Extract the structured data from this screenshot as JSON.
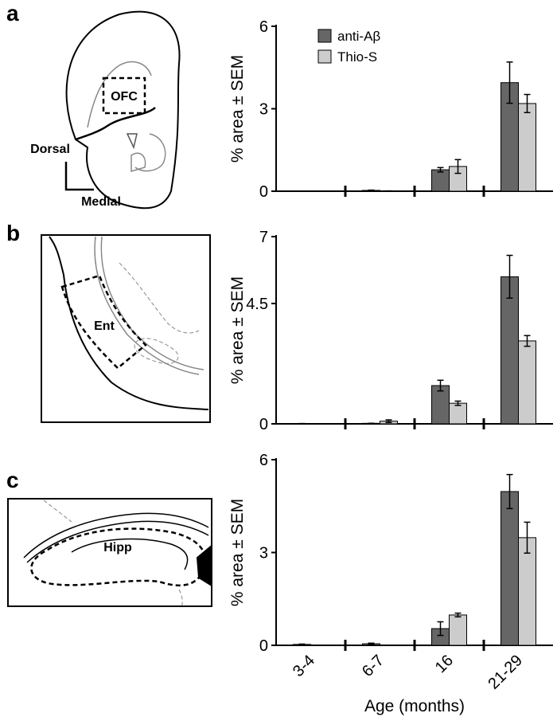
{
  "panels": [
    {
      "label": "a",
      "diagram": {
        "region": "OFC",
        "dorsal": "Dorsal",
        "medial": "Medial"
      }
    },
    {
      "label": "b",
      "diagram": {
        "region": "Ent"
      }
    },
    {
      "label": "c",
      "diagram": {
        "region": "Hipp"
      }
    }
  ],
  "chart_data": [
    {
      "type": "bar",
      "y_label": "% area ± SEM",
      "categories": [
        null,
        null,
        null,
        null
      ],
      "ylim": [
        0,
        6
      ],
      "yticks": [
        0,
        3,
        6
      ],
      "legend": "upper left",
      "series": [
        {
          "name": "anti-Aβ",
          "color": "#666666",
          "values": [
            0,
            0.03,
            0.78,
            3.95
          ],
          "errors": [
            0,
            0.01,
            0.08,
            0.75
          ]
        },
        {
          "name": "Thio-S",
          "color": "#cccccc",
          "values": [
            0,
            0.01,
            0.9,
            3.19
          ],
          "errors": [
            0,
            0,
            0.25,
            0.33
          ]
        }
      ]
    },
    {
      "type": "bar",
      "y_label": "% area ± SEM",
      "categories": [
        null,
        null,
        null,
        null
      ],
      "ylim": [
        0,
        7
      ],
      "yticks": [
        0,
        4.5,
        7
      ],
      "series": [
        {
          "color": "#666666",
          "values": [
            0.01,
            0.02,
            1.43,
            5.5
          ],
          "errors": [
            0,
            0,
            0.2,
            0.8
          ]
        },
        {
          "color": "#cccccc",
          "values": [
            0,
            0.1,
            0.77,
            3.1
          ],
          "errors": [
            0,
            0.05,
            0.08,
            0.2
          ]
        }
      ]
    },
    {
      "type": "bar",
      "y_label": "% area ± SEM",
      "x_label": "Age (months)",
      "categories": [
        "3-4",
        "6-7",
        "16",
        "21-29"
      ],
      "ylim": [
        0,
        6
      ],
      "yticks": [
        0,
        3,
        6
      ],
      "series": [
        {
          "color": "#666666",
          "values": [
            0.03,
            0.05,
            0.54,
            4.97
          ],
          "errors": [
            0.01,
            0.02,
            0.22,
            0.55
          ]
        },
        {
          "color": "#cccccc",
          "values": [
            0,
            0,
            0.98,
            3.48
          ],
          "errors": [
            0,
            0,
            0.06,
            0.5
          ]
        }
      ]
    }
  ]
}
